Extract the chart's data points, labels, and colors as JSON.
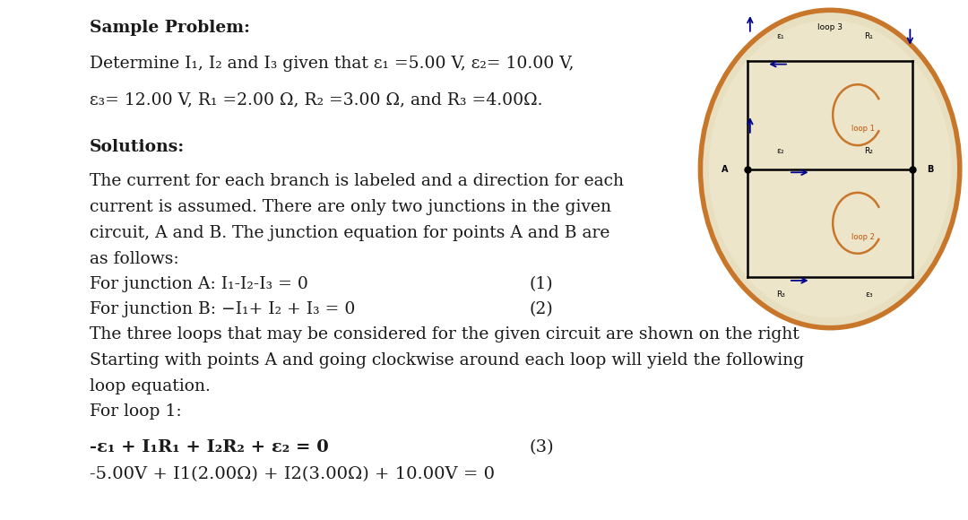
{
  "bg_color": "#ffffff",
  "text_color": "#1a1a1a",
  "title": "Sample Problem:",
  "line1a": "Determine I",
  "line1b": ", I",
  "line1c": " and I",
  "line1d": " given that ε",
  "line1e": " =5.00 V, ε",
  "line1f": "= 10.00 V,",
  "line2a": "ε",
  "line2b": "= 12.00 V, R",
  "line2c": " =2.00 Ω, R",
  "line2d": " =3.00 Ω, and R",
  "line2e": " =4.00Ω.",
  "solutions_label": "Solutions:",
  "para1_lines": [
    "The current for each branch is labeled and a direction for each",
    "current is assumed. There are only two junctions in the given",
    "circuit, A and B. The junction equation for points A and B are",
    "as follows:"
  ],
  "junc_a_text": "For junction A: I",
  "junc_a_eq": "-I",
  "junc_a_end": "-I",
  "junc_b_text": "For junction B: −I",
  "para2_lines": [
    "The three loops that may be considered for the given circuit are shown on the right",
    "Starting with points A and going clockwise around each loop will yield the following",
    "loop equation."
  ],
  "loop1_label": "For loop 1:",
  "loop1_eq_num": "(3)",
  "loop1_vals": "-5.00V + I1(2.00Ω) + I2(3.00Ω) + 10.00V = 0",
  "font_size_body": 13.5,
  "font_size_eq": 14,
  "circuit_bg": "#e8dfc0",
  "circuit_border": "#c8762a",
  "circuit_outer": "#d4c5a0"
}
